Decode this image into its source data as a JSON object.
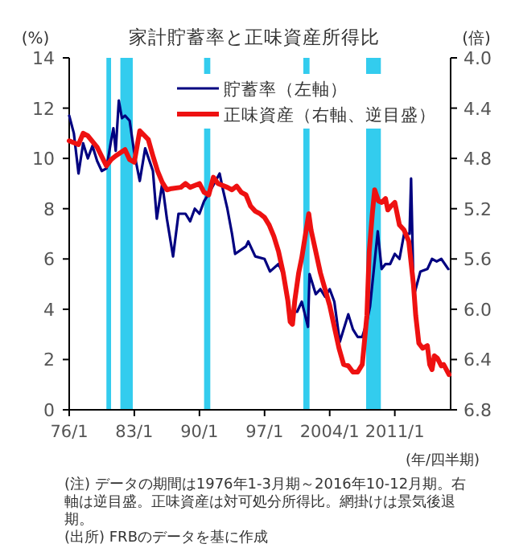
{
  "chart_data": {
    "type": "line",
    "title": "家計貯蓄率と正味資産所得比",
    "ylabel": "(%)",
    "y2label": "(倍)",
    "xlabel": "(年/四半期)",
    "xlim": [
      "1976-01",
      "2017-01"
    ],
    "xticks": [
      {
        "value": "1976-01",
        "label": "76/1"
      },
      {
        "value": "1983-01",
        "label": "83/1"
      },
      {
        "value": "1990-01",
        "label": "90/1"
      },
      {
        "value": "1997-01",
        "label": "97/1"
      },
      {
        "value": "2004-01",
        "label": "2004/1"
      },
      {
        "value": "2011-01",
        "label": "2011/1"
      }
    ],
    "ylim": [
      0,
      14
    ],
    "yticks": [
      0,
      2,
      4,
      6,
      8,
      10,
      12,
      14
    ],
    "y2lim": [
      6.8,
      4.0
    ],
    "y2ticks": [
      {
        "value": 4,
        "label": "4.0"
      },
      {
        "value": 4.4,
        "label": "4.4"
      },
      {
        "value": 4.8,
        "label": "4.8"
      },
      {
        "value": 5.2,
        "label": "5.2"
      },
      {
        "value": 5.6,
        "label": "5.6"
      },
      {
        "value": 6,
        "label": "6.0"
      },
      {
        "value": 6.4,
        "label": "6.4"
      },
      {
        "value": 6.8,
        "label": "6.8"
      }
    ],
    "grid": false,
    "legend": "top right",
    "marker": "none",
    "line_style": "solid",
    "bands": [
      {
        "axis": "x",
        "from": "1980-01",
        "to": "1980-07",
        "color": "#33ccee"
      },
      {
        "axis": "x",
        "from": "1981-07",
        "to": "1982-11",
        "color": "#33ccee"
      },
      {
        "axis": "x",
        "from": "1990-07",
        "to": "1991-03",
        "color": "#33ccee"
      },
      {
        "axis": "x",
        "from": "2001-03",
        "to": "2001-11",
        "color": "#33ccee"
      },
      {
        "axis": "x",
        "from": "2007-12",
        "to": "2009-07",
        "color": "#33ccee"
      }
    ],
    "series": [
      {
        "name": "貯蓄率（左軸）",
        "color": "#000080",
        "x": [
          "1976-01",
          "1976-07",
          "1977-01",
          "1977-07",
          "1978-01",
          "1978-07",
          "1979-01",
          "1979-07",
          "1980-01",
          "1980-07",
          "1980-10",
          "1981-01",
          "1981-05",
          "1981-09",
          "1982-01",
          "1982-07",
          "1983-01",
          "1983-08",
          "1984-03",
          "1985-01",
          "1985-06",
          "1986-01",
          "1986-07",
          "1987-03",
          "1987-10",
          "1988-07",
          "1989-01",
          "1989-07",
          "1990-01",
          "1990-07",
          "1991-01",
          "1992-03",
          "1992-07",
          "1993-01",
          "1993-07",
          "1993-11",
          "1995-01",
          "1995-04",
          "1996-01",
          "1997-01",
          "1997-08",
          "1998-07",
          "1999-01",
          "1999-09",
          "2000-07",
          "2001-01",
          "2001-09",
          "2001-11",
          "2002-07",
          "2003-01",
          "2003-07",
          "2004-01",
          "2004-07",
          "2005-02",
          "2006-01",
          "2006-07",
          "2007-01",
          "2007-07",
          "2008-01",
          "2008-05",
          "2008-08",
          "2009-01",
          "2009-03",
          "2009-08",
          "2010-01",
          "2010-07",
          "2011-01",
          "2011-07",
          "2012-01",
          "2012-08",
          "2012-10",
          "2013-01",
          "2013-03",
          "2013-10",
          "2014-07",
          "2015-01",
          "2015-07",
          "2016-01",
          "2016-10"
        ],
        "values": [
          11.7,
          11.0,
          9.4,
          10.6,
          10.0,
          10.5,
          9.9,
          9.5,
          9.6,
          10.7,
          11.2,
          10.3,
          12.3,
          11.6,
          11.7,
          11.5,
          10.2,
          9.1,
          10.4,
          9.5,
          7.6,
          9.0,
          7.6,
          6.1,
          7.8,
          7.8,
          7.5,
          8.0,
          7.8,
          8.3,
          8.6,
          9.4,
          8.8,
          8.0,
          7.0,
          6.2,
          6.5,
          6.7,
          6.1,
          6.0,
          5.5,
          5.8,
          5.4,
          3.9,
          3.9,
          4.3,
          3.3,
          5.4,
          4.6,
          4.8,
          4.5,
          4.8,
          4.3,
          2.7,
          3.8,
          3.2,
          2.9,
          2.9,
          3.5,
          4.1,
          5.0,
          6.5,
          7.1,
          5.6,
          5.8,
          5.8,
          6.2,
          6.0,
          7.0,
          7.0,
          9.2,
          5.0,
          4.7,
          5.5,
          5.6,
          6.0,
          5.9,
          6.0,
          5.6
        ]
      },
      {
        "name": "正味資産（右軸、逆目盛）",
        "color": "#ee1111",
        "axis": "y2",
        "x": [
          "1976-01",
          "1977-01",
          "1977-07",
          "1978-01",
          "1979-01",
          "1980-01",
          "1980-07",
          "1981-01",
          "1982-01",
          "1982-07",
          "1983-01",
          "1983-08",
          "1984-07",
          "1985-01",
          "1985-07",
          "1986-01",
          "1986-07",
          "1987-01",
          "1988-01",
          "1988-07",
          "1989-01",
          "1990-01",
          "1990-07",
          "1991-01",
          "1991-07",
          "1992-01",
          "1993-01",
          "1993-07",
          "1994-01",
          "1994-07",
          "1995-01",
          "1995-07",
          "1996-01",
          "1996-07",
          "1997-01",
          "1997-07",
          "1998-01",
          "1998-07",
          "1999-01",
          "1999-07",
          "1999-10",
          "2000-01",
          "2000-04",
          "2000-09",
          "2001-01",
          "2001-10",
          "2002-01",
          "2002-07",
          "2003-01",
          "2003-07",
          "2004-01",
          "2004-07",
          "2005-01",
          "2005-07",
          "2006-01",
          "2006-07",
          "2007-01",
          "2007-07",
          "2008-01",
          "2008-04",
          "2008-08",
          "2008-11",
          "2009-04",
          "2009-08",
          "2010-01",
          "2010-04",
          "2010-08",
          "2011-01",
          "2011-07",
          "2012-01",
          "2012-07",
          "2013-01",
          "2013-04",
          "2013-08",
          "2014-01",
          "2014-07",
          "2014-10",
          "2015-01",
          "2015-04",
          "2015-08",
          "2016-01",
          "2016-04",
          "2016-11"
        ],
        "values": [
          4.66,
          4.69,
          4.6,
          4.62,
          4.71,
          4.86,
          4.81,
          4.78,
          4.73,
          4.81,
          4.83,
          4.58,
          4.65,
          4.78,
          4.9,
          4.99,
          5.05,
          5.04,
          5.03,
          5.0,
          5.03,
          5.0,
          5.07,
          5.09,
          4.95,
          5.0,
          5.03,
          5.05,
          5.02,
          5.07,
          5.09,
          5.18,
          5.22,
          5.24,
          5.27,
          5.33,
          5.42,
          5.54,
          5.71,
          5.93,
          6.1,
          6.12,
          5.93,
          5.71,
          5.59,
          5.24,
          5.37,
          5.54,
          5.71,
          5.84,
          5.97,
          6.14,
          6.31,
          6.44,
          6.45,
          6.5,
          6.5,
          6.44,
          6.05,
          5.54,
          5.24,
          5.05,
          5.14,
          5.15,
          5.12,
          5.21,
          5.18,
          5.15,
          5.33,
          5.37,
          5.46,
          5.8,
          6.05,
          6.27,
          6.31,
          6.29,
          6.44,
          6.48,
          6.37,
          6.39,
          6.45,
          6.44,
          6.52
        ]
      }
    ],
    "annotations": [
      "(注) データの期間は1976年1-3月期～2016年10-12月期。右軸は逆目盛。正味資産は対可処分所得比。網掛けは景気後退期。",
      "(出所) FRBのデータを基に作成"
    ]
  }
}
